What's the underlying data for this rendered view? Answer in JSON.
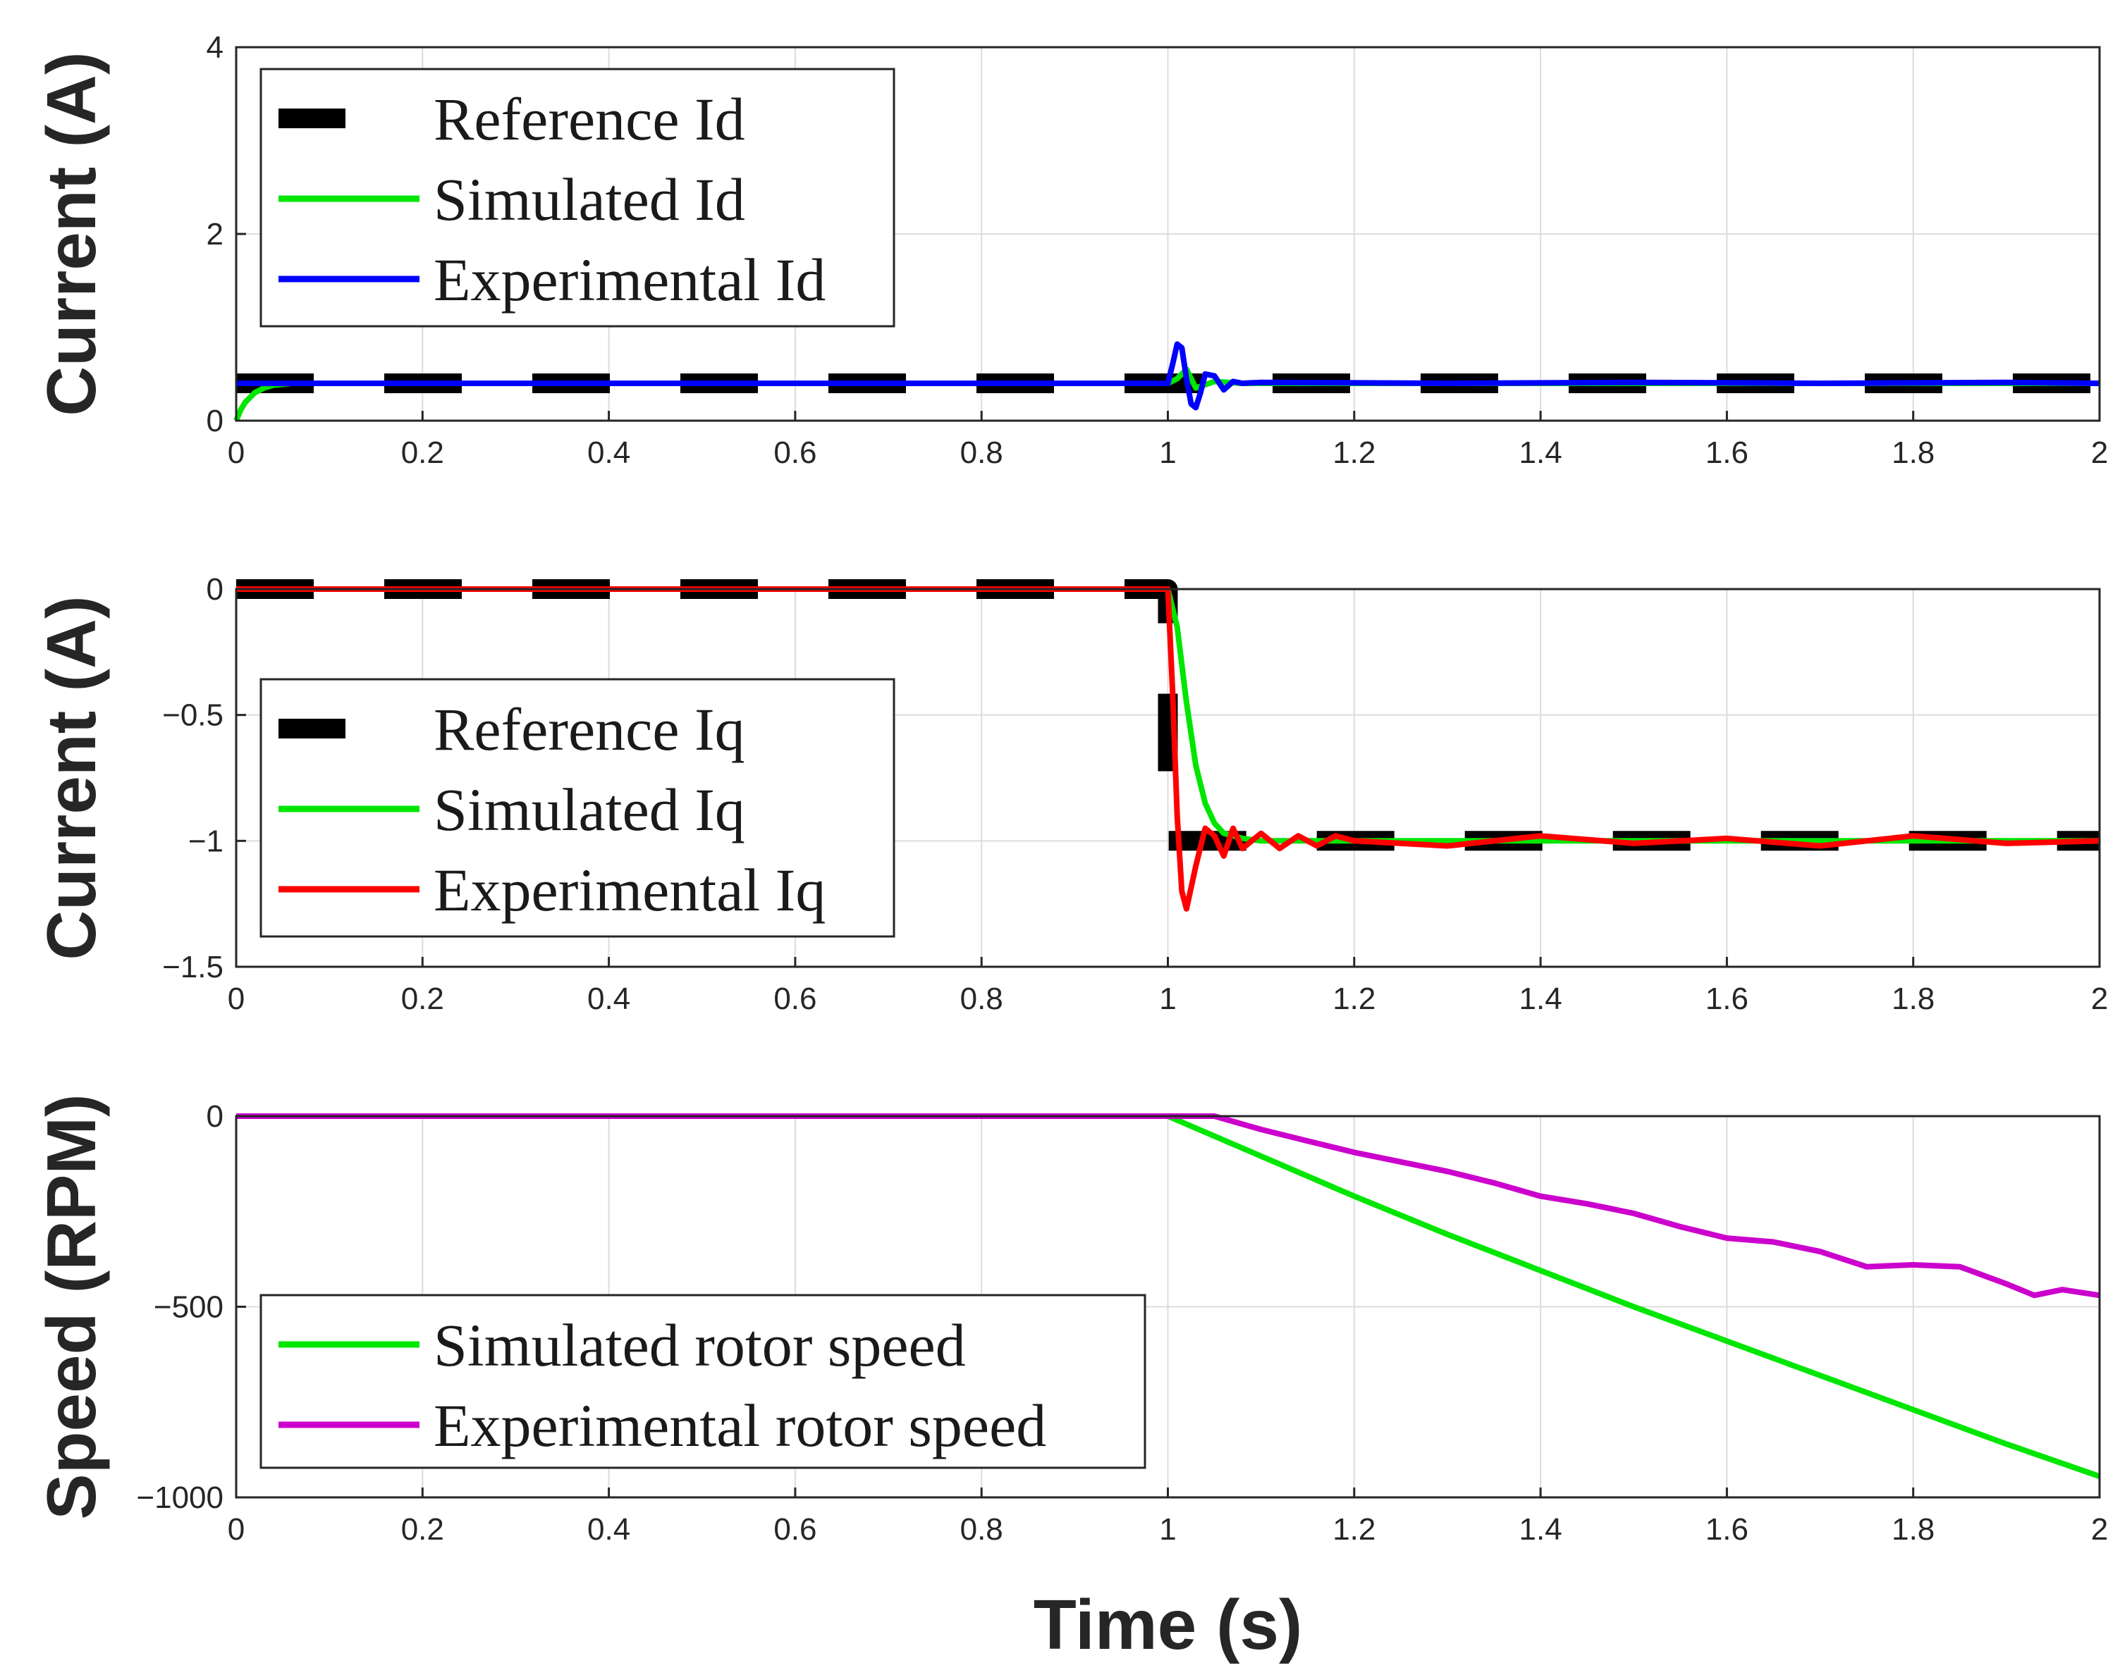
{
  "chart_data": [
    {
      "type": "line",
      "ylabel": "Current (A)",
      "xlabel": "",
      "xlim": [
        0,
        2
      ],
      "ylim": [
        0,
        4
      ],
      "xticks": [
        0,
        0.2,
        0.4,
        0.6,
        0.8,
        1,
        1.2,
        1.4,
        1.6,
        1.8,
        2
      ],
      "xtick_labels": [
        "0",
        "0.2",
        "0.4",
        "0.6",
        "0.8",
        "1",
        "1.2",
        "1.4",
        "1.6",
        "1.8",
        "2"
      ],
      "yticks": [
        0,
        2,
        4
      ],
      "ytick_labels": [
        "0",
        "2",
        "4"
      ],
      "grid": true,
      "legend_position": "top-left",
      "series": [
        {
          "name": "Reference Id",
          "color": "#000000",
          "style": "dashed",
          "x": [
            0,
            2
          ],
          "y": [
            0.4,
            0.4
          ]
        },
        {
          "name": "Simulated Id",
          "color": "#00e600",
          "style": "solid",
          "x": [
            0,
            0.005,
            0.01,
            0.02,
            0.03,
            0.04,
            0.05,
            0.06,
            0.08,
            0.1,
            1.0,
            1.01,
            1.02,
            1.03,
            1.05,
            1.08,
            1.1,
            2
          ],
          "y": [
            0.0,
            0.12,
            0.2,
            0.3,
            0.35,
            0.38,
            0.39,
            0.4,
            0.4,
            0.4,
            0.4,
            0.45,
            0.55,
            0.35,
            0.42,
            0.4,
            0.4,
            0.4
          ]
        },
        {
          "name": "Experimental Id",
          "color": "#0000ff",
          "style": "solid",
          "x": [
            0,
            0.3,
            0.6,
            0.9,
            1.0,
            1.005,
            1.01,
            1.015,
            1.02,
            1.025,
            1.03,
            1.035,
            1.04,
            1.05,
            1.06,
            1.07,
            1.08,
            1.1,
            1.3,
            1.5,
            1.7,
            1.9,
            2.0
          ],
          "y": [
            0.4,
            0.4,
            0.4,
            0.4,
            0.4,
            0.6,
            0.82,
            0.78,
            0.45,
            0.18,
            0.14,
            0.3,
            0.5,
            0.48,
            0.33,
            0.42,
            0.4,
            0.41,
            0.4,
            0.41,
            0.4,
            0.41,
            0.4
          ]
        }
      ]
    },
    {
      "type": "line",
      "ylabel": "Current (A)",
      "xlabel": "",
      "xlim": [
        0,
        2
      ],
      "ylim": [
        -1.5,
        0
      ],
      "xticks": [
        0,
        0.2,
        0.4,
        0.6,
        0.8,
        1,
        1.2,
        1.4,
        1.6,
        1.8,
        2
      ],
      "xtick_labels": [
        "0",
        "0.2",
        "0.4",
        "0.6",
        "0.8",
        "1",
        "1.2",
        "1.4",
        "1.6",
        "1.8",
        "2"
      ],
      "yticks": [
        0,
        -0.5,
        -1,
        -1.5
      ],
      "ytick_labels": [
        "0",
        "−0.5",
        "−1",
        "−1.5"
      ],
      "grid": true,
      "legend_position": "middle-left",
      "series": [
        {
          "name": "Reference Iq",
          "color": "#000000",
          "style": "dashed",
          "x": [
            0,
            1.0,
            1.0,
            1.0,
            1.0,
            2.0
          ],
          "y": [
            0,
            0,
            -0.05,
            -0.22,
            -1.0,
            -1.0
          ]
        },
        {
          "name": "Simulated Iq",
          "color": "#00e600",
          "style": "solid",
          "x": [
            0,
            1.0,
            1.01,
            1.02,
            1.03,
            1.04,
            1.05,
            1.06,
            1.08,
            1.1,
            1.2,
            2.0
          ],
          "y": [
            0,
            0,
            -0.15,
            -0.45,
            -0.7,
            -0.85,
            -0.93,
            -0.97,
            -0.99,
            -1.0,
            -1.0,
            -1.0
          ]
        },
        {
          "name": "Experimental Iq",
          "color": "#ff0000",
          "style": "solid",
          "x": [
            0,
            1.0,
            1.005,
            1.01,
            1.015,
            1.02,
            1.03,
            1.04,
            1.05,
            1.06,
            1.07,
            1.08,
            1.1,
            1.12,
            1.14,
            1.16,
            1.18,
            1.2,
            1.3,
            1.4,
            1.5,
            1.6,
            1.7,
            1.8,
            1.9,
            2.0
          ],
          "y": [
            0,
            0,
            -0.4,
            -0.9,
            -1.2,
            -1.27,
            -1.1,
            -0.95,
            -0.98,
            -1.06,
            -0.95,
            -1.03,
            -0.97,
            -1.03,
            -0.98,
            -1.02,
            -0.98,
            -1.0,
            -1.02,
            -0.98,
            -1.01,
            -0.99,
            -1.02,
            -0.98,
            -1.01,
            -1.0
          ]
        }
      ]
    },
    {
      "type": "line",
      "ylabel": "Speed (RPM)",
      "xlabel": "Time (s)",
      "xlim": [
        0,
        2
      ],
      "ylim": [
        -1000,
        0
      ],
      "xticks": [
        0,
        0.2,
        0.4,
        0.6,
        0.8,
        1,
        1.2,
        1.4,
        1.6,
        1.8,
        2
      ],
      "xtick_labels": [
        "0",
        "0.2",
        "0.4",
        "0.6",
        "0.8",
        "1",
        "1.2",
        "1.4",
        "1.6",
        "1.8",
        "2"
      ],
      "yticks": [
        0,
        -500,
        -1000
      ],
      "ytick_labels": [
        "0",
        "−500",
        "−1000"
      ],
      "grid": true,
      "legend_position": "bottom-left",
      "series": [
        {
          "name": "Simulated rotor speed",
          "color": "#00e600",
          "style": "solid",
          "x": [
            0,
            1.0,
            1.1,
            1.2,
            1.3,
            1.4,
            1.5,
            1.6,
            1.7,
            1.8,
            1.9,
            2.0
          ],
          "y": [
            0,
            0,
            -105,
            -210,
            -310,
            -405,
            -500,
            -590,
            -680,
            -770,
            -860,
            -945
          ]
        },
        {
          "name": "Experimental rotor speed",
          "color": "#cc00cc",
          "style": "solid",
          "x": [
            0,
            1.0,
            1.05,
            1.1,
            1.15,
            1.2,
            1.25,
            1.3,
            1.35,
            1.4,
            1.45,
            1.5,
            1.55,
            1.6,
            1.65,
            1.7,
            1.75,
            1.8,
            1.85,
            1.9,
            1.93,
            1.96,
            2.0
          ],
          "y": [
            0,
            0,
            0,
            -35,
            -65,
            -95,
            -120,
            -145,
            -175,
            -210,
            -230,
            -255,
            -290,
            -320,
            -330,
            -355,
            -395,
            -390,
            -395,
            -440,
            -470,
            -455,
            -470
          ]
        }
      ]
    }
  ]
}
